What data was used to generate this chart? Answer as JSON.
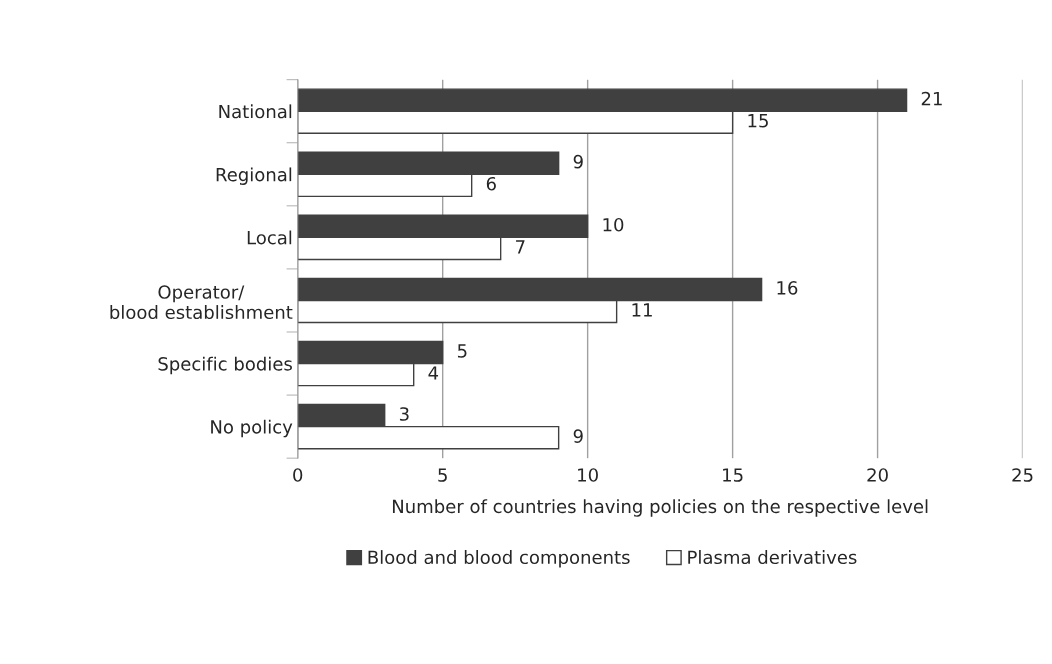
{
  "chart_data": {
    "type": "bar",
    "orientation": "horizontal",
    "categories": [
      "National",
      "Regional",
      "Local",
      "Operator/\nblood establishment",
      "Specific bodies",
      "No policy"
    ],
    "series": [
      {
        "name": "Blood and blood components",
        "color": "#404040",
        "values": [
          21,
          9,
          10,
          16,
          5,
          3
        ]
      },
      {
        "name": "Plasma derivatives",
        "color": "#ffffff",
        "values": [
          15,
          6,
          7,
          11,
          4,
          9
        ]
      }
    ],
    "xlabel": "Number of countries having policies on the respective level",
    "xlim": [
      0,
      25
    ],
    "xticks": [
      0,
      5,
      10,
      15,
      20,
      25
    ],
    "grid": "x",
    "legend": "bottom",
    "data_labels": true
  }
}
